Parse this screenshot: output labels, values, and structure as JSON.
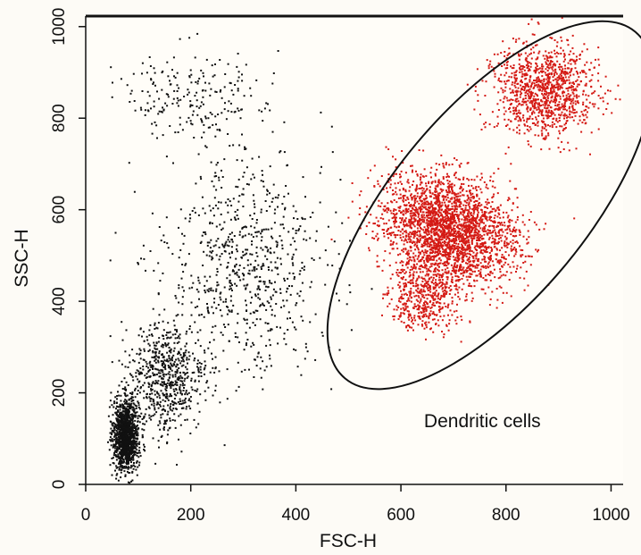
{
  "chart_data": {
    "type": "scatter",
    "title": "",
    "xlabel": "FSC-H",
    "ylabel": "SSC-H",
    "xlim": [
      0,
      1023
    ],
    "ylim": [
      0,
      1023
    ],
    "xticks": [
      0,
      200,
      400,
      600,
      800,
      1000
    ],
    "yticks": [
      0,
      200,
      400,
      600,
      800,
      1000
    ],
    "grid": false,
    "series": [
      {
        "color": "#111111",
        "clusters": [
          {
            "center": [
              75,
              110
            ],
            "spread": [
              22,
              70
            ],
            "count": 1300
          },
          {
            "center": [
              150,
              230
            ],
            "spread": [
              70,
              110
            ],
            "count": 650
          },
          {
            "center": [
              300,
              480
            ],
            "spread": [
              140,
              220
            ],
            "count": 750
          },
          {
            "center": [
              200,
              850
            ],
            "spread": [
              130,
              90
            ],
            "count": 220
          }
        ]
      },
      {
        "color": "#d41a14",
        "clusters": [
          {
            "center": [
              690,
              560
            ],
            "spread": [
              95,
              120
            ],
            "count": 2600,
            "rotation_deg": 52
          },
          {
            "center": [
              870,
              860
            ],
            "spread": [
              90,
              90
            ],
            "count": 1100
          },
          {
            "center": [
              640,
              420
            ],
            "spread": [
              60,
              70
            ],
            "count": 500
          }
        ]
      }
    ],
    "annotations": [
      {
        "type": "gate-ellipse",
        "label": "Dendritic cells",
        "center": [
          770,
          610
        ],
        "semi_axes": [
          430,
          210
        ],
        "rotation_deg": 50,
        "label_position": [
          755,
          125
        ]
      }
    ]
  }
}
